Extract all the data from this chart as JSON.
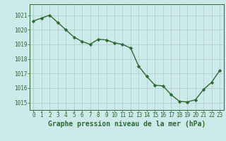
{
  "x": [
    0,
    1,
    2,
    3,
    4,
    5,
    6,
    7,
    8,
    9,
    10,
    11,
    12,
    13,
    14,
    15,
    16,
    17,
    18,
    19,
    20,
    21,
    22,
    23
  ],
  "y": [
    1020.6,
    1020.8,
    1021.0,
    1020.5,
    1020.0,
    1019.5,
    1019.2,
    1019.0,
    1019.35,
    1019.3,
    1019.1,
    1019.0,
    1018.75,
    1017.5,
    1016.8,
    1016.2,
    1016.15,
    1015.55,
    1015.1,
    1015.05,
    1015.2,
    1015.9,
    1016.4,
    1017.2
  ],
  "line_color": "#2d6a2d",
  "marker": "D",
  "markersize": 2.2,
  "linewidth": 1.0,
  "title": "Graphe pression niveau de la mer (hPa)",
  "ylim": [
    1014.5,
    1021.75
  ],
  "xlim": [
    -0.5,
    23.5
  ],
  "yticks": [
    1015,
    1016,
    1017,
    1018,
    1019,
    1020,
    1021
  ],
  "xticks": [
    0,
    1,
    2,
    3,
    4,
    5,
    6,
    7,
    8,
    9,
    10,
    11,
    12,
    13,
    14,
    15,
    16,
    17,
    18,
    19,
    20,
    21,
    22,
    23
  ],
  "bg_color": "#cceaea",
  "grid_color": "#b0c8c8",
  "axis_color": "#2d6a2d",
  "title_color": "#2d6a2d",
  "tick_color": "#2d6a2d",
  "title_fontsize": 7.0,
  "tick_fontsize": 5.5
}
